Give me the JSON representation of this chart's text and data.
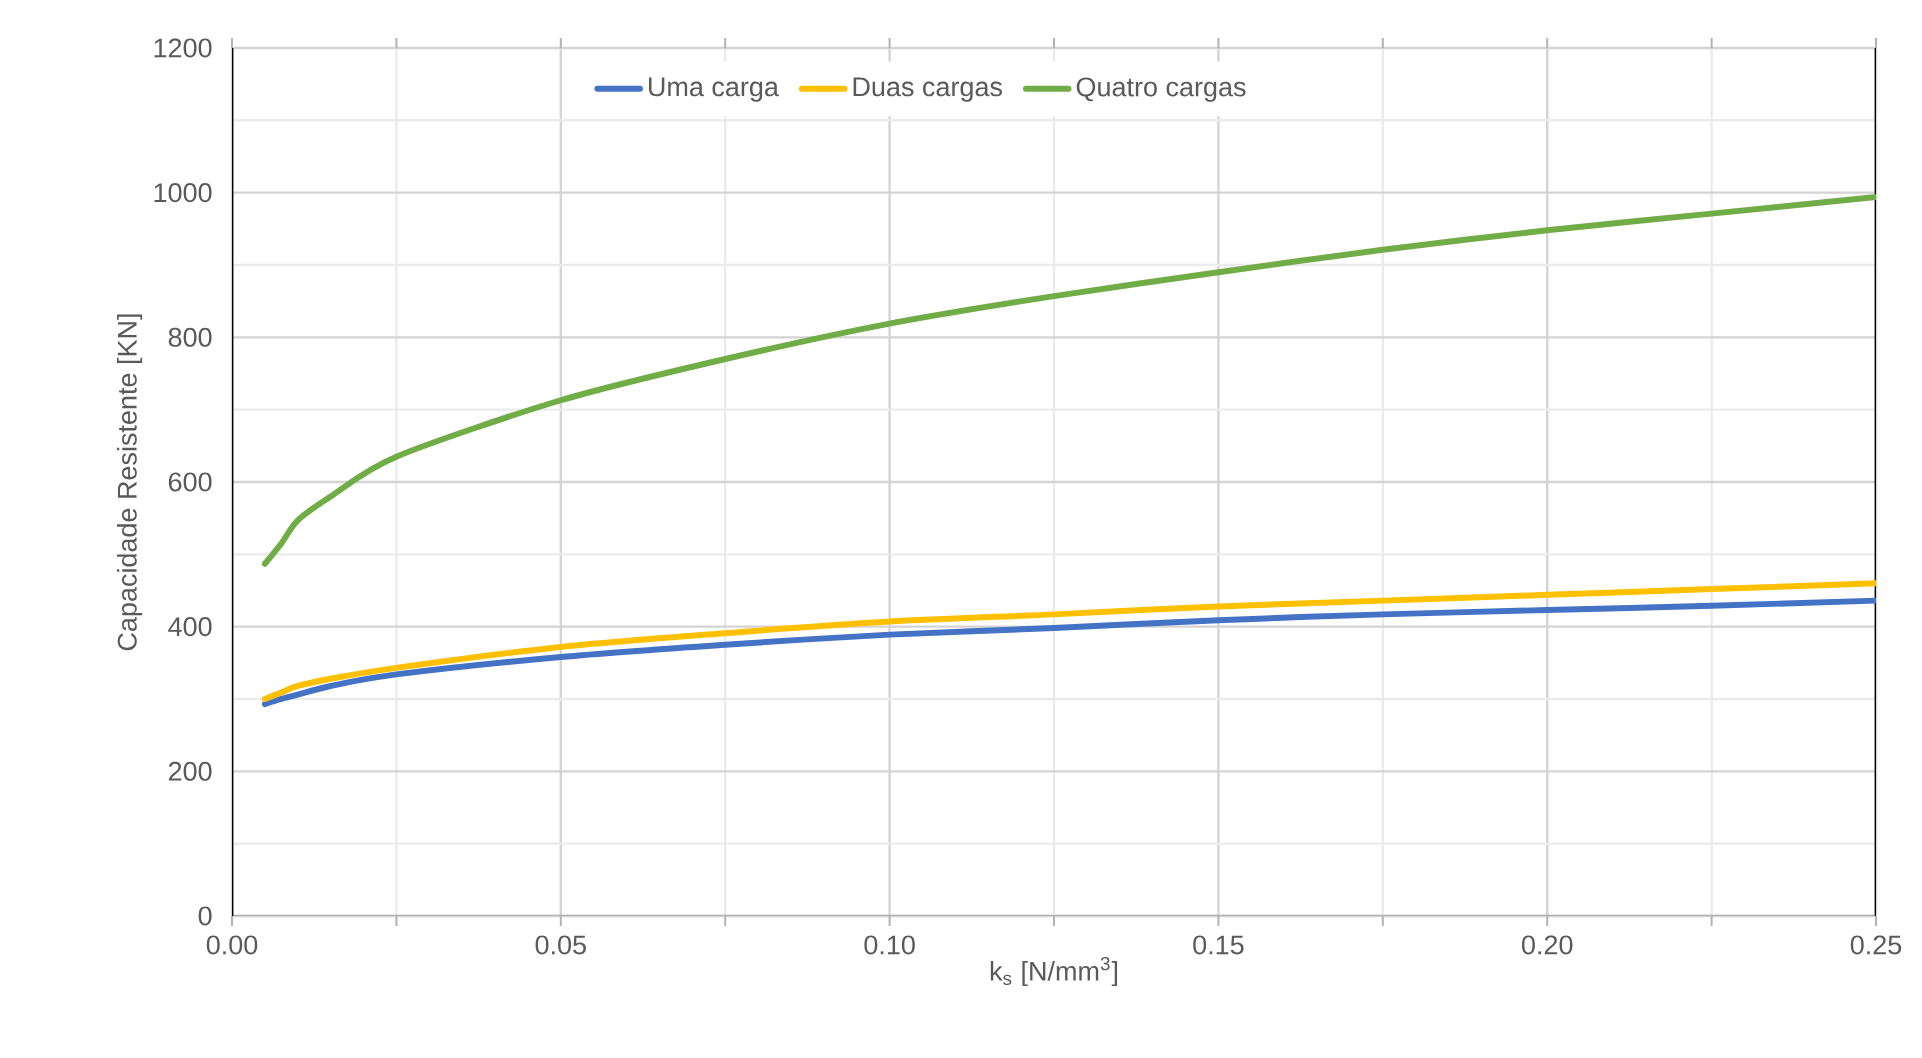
{
  "chart_data": {
    "type": "line",
    "xlabel": "k$_{s}$ [N/mm$^{3}$]",
    "ylabel": "Capacidade Resistente [KN]",
    "x": [
      0.005,
      0.0075,
      0.01,
      0.015,
      0.025,
      0.05,
      0.075,
      0.1,
      0.125,
      0.15,
      0.175,
      0.2,
      0.225,
      0.25
    ],
    "series": [
      {
        "name": "Uma carga",
        "color": "#4472c4",
        "values": [
          293,
          300,
          306,
          318,
          334,
          358,
          375,
          389,
          398,
          409,
          417,
          423,
          429,
          436
        ]
      },
      {
        "name": "Duas cargas",
        "color": "#ffc000",
        "values": [
          300,
          309,
          318,
          328,
          343,
          372,
          391,
          407,
          417,
          428,
          436,
          444,
          452,
          460
        ]
      },
      {
        "name": "Quatro cargas",
        "color": "#70ad47",
        "values": [
          487,
          515,
          547,
          580,
          635,
          713,
          770,
          819,
          857,
          890,
          921,
          948,
          971,
          994
        ]
      }
    ],
    "xlim": [
      0,
      0.25
    ],
    "ylim": [
      0,
      1200
    ],
    "xticks": [
      {
        "value": 0,
        "label": "0.00"
      },
      {
        "value": 0.05,
        "label": "0.05"
      },
      {
        "value": 0.1,
        "label": "0.10"
      },
      {
        "value": 0.15,
        "label": "0.15"
      },
      {
        "value": 0.2,
        "label": "0.20"
      },
      {
        "value": 0.25,
        "label": "0.25"
      }
    ],
    "yticks": [
      0,
      200,
      400,
      600,
      800,
      1000,
      1200
    ],
    "grid": true,
    "legend": "top",
    "marker": "none",
    "line_style": "solid"
  }
}
